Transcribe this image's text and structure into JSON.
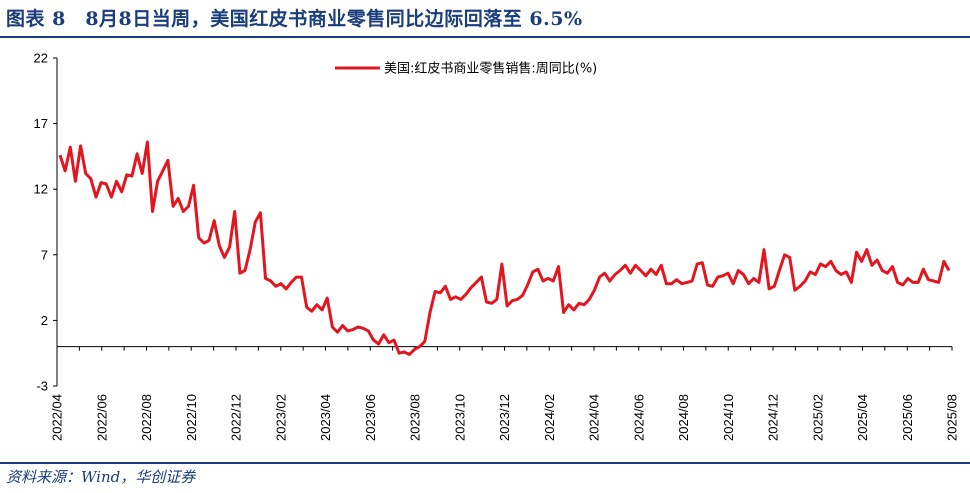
{
  "header": {
    "title": "图表 8　8月8日当周，美国红皮书商业零售同比边际回落至 6.5%"
  },
  "footer": {
    "source": "资料来源：Wind，华创证券"
  },
  "colors": {
    "accent": "#1a3d7c",
    "series": "#e3161f"
  },
  "chart_data": {
    "type": "line",
    "title": "",
    "xlabel": "",
    "ylabel": "",
    "ylim": [
      -3,
      22
    ],
    "yticks": [
      -3,
      2,
      7,
      12,
      17,
      22
    ],
    "grid": false,
    "legend_position": "top-center",
    "x_ticks": [
      "2022/04",
      "2022/06",
      "2022/08",
      "2022/10",
      "2022/12",
      "2023/02",
      "2023/04",
      "2023/06",
      "2023/08",
      "2023/10",
      "2023/12",
      "2024/02",
      "2024/04",
      "2024/06",
      "2024/08",
      "2024/10",
      "2024/12",
      "2025/02",
      "2025/04",
      "2025/06",
      "2025/08"
    ],
    "series": [
      {
        "name": "美国:红皮书商业零售销售:周同比(%)",
        "values": [
          14.6,
          13.4,
          15.2,
          12.6,
          15.3,
          13.2,
          12.8,
          11.4,
          12.5,
          12.4,
          11.4,
          12.6,
          11.8,
          13.1,
          13.0,
          14.7,
          13.2,
          15.6,
          10.3,
          12.6,
          13.4,
          14.2,
          10.7,
          11.3,
          10.3,
          10.7,
          12.3,
          8.3,
          7.9,
          8.1,
          9.6,
          7.7,
          6.8,
          7.6,
          10.3,
          5.6,
          5.8,
          7.4,
          9.5,
          10.2,
          5.2,
          5.0,
          4.6,
          4.8,
          4.4,
          4.9,
          5.3,
          5.3,
          3.0,
          2.7,
          3.2,
          2.8,
          3.7,
          1.5,
          1.1,
          1.6,
          1.2,
          1.3,
          1.5,
          1.4,
          1.2,
          0.5,
          0.2,
          0.9,
          0.3,
          0.5,
          -0.5,
          -0.4,
          -0.6,
          -0.2,
          0.0,
          0.4,
          2.6,
          4.2,
          4.1,
          4.6,
          3.6,
          3.8,
          3.6,
          4.0,
          4.5,
          4.9,
          5.3,
          3.4,
          3.3,
          3.6,
          6.3,
          3.1,
          3.5,
          3.6,
          3.9,
          4.7,
          5.7,
          5.9,
          5.0,
          5.2,
          5.0,
          6.1,
          2.6,
          3.2,
          2.8,
          3.3,
          3.2,
          3.6,
          4.3,
          5.3,
          5.6,
          5.0,
          5.5,
          5.8,
          6.2,
          5.6,
          6.2,
          5.8,
          5.4,
          5.9,
          5.5,
          6.2,
          4.8,
          4.8,
          5.1,
          4.8,
          4.9,
          5.0,
          6.3,
          6.4,
          4.7,
          4.6,
          5.3,
          5.4,
          5.6,
          4.8,
          5.8,
          5.5,
          4.8,
          5.2,
          4.9,
          7.4,
          4.4,
          4.6,
          5.8,
          7.0,
          6.8,
          4.3,
          4.6,
          5.0,
          5.7,
          5.5,
          6.3,
          6.1,
          6.5,
          5.8,
          5.5,
          5.7,
          4.9,
          7.2,
          6.5,
          7.4,
          6.2,
          6.6,
          5.8,
          5.6,
          6.1,
          4.9,
          4.7,
          5.2,
          4.9,
          4.9,
          5.9,
          5.1,
          5.0,
          4.9,
          6.5,
          5.8
        ]
      }
    ]
  }
}
